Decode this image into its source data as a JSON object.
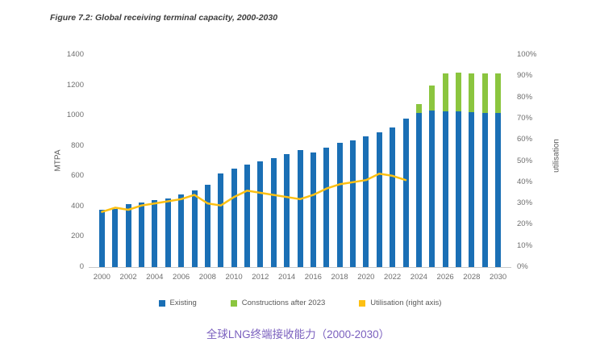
{
  "figure_title": "Figure 7.2: Global receiving terminal capacity, 2000-2030",
  "caption": "全球LNG终端接收能力（2000-2030）",
  "colors": {
    "existing_bar": "#1a6fb5",
    "construction_bar": "#8bc53f",
    "utilisation_line": "#fdc013",
    "caption_text": "#7a5fbe",
    "axis_text": "#6e6e6e",
    "title_text": "#3c3c3c"
  },
  "legend": [
    {
      "label": "Existing",
      "color": "#1a6fb5"
    },
    {
      "label": "Constructions after 2023",
      "color": "#8bc53f"
    },
    {
      "label": "Utilisation (right axis)",
      "color": "#fdc013"
    }
  ],
  "chart_data": {
    "type": "bar",
    "title": "Figure 7.2: Global receiving terminal capacity, 2000-2030",
    "categories": [
      2000,
      2001,
      2002,
      2003,
      2004,
      2005,
      2006,
      2007,
      2008,
      2009,
      2010,
      2011,
      2012,
      2013,
      2014,
      2015,
      2016,
      2017,
      2018,
      2019,
      2020,
      2021,
      2022,
      2023,
      2024,
      2025,
      2026,
      2027,
      2028,
      2029,
      2030
    ],
    "series": [
      {
        "name": "Existing",
        "type": "bar",
        "axis": "left",
        "color": "#1a6fb5",
        "values": [
          380,
          385,
          415,
          425,
          440,
          455,
          480,
          505,
          545,
          615,
          650,
          675,
          695,
          720,
          745,
          770,
          755,
          790,
          820,
          835,
          865,
          890,
          920,
          980,
          1015,
          1035,
          1030,
          1025,
          1020,
          1015,
          1015
        ]
      },
      {
        "name": "Constructions after 2023",
        "type": "bar",
        "axis": "left",
        "stacked_on": "Existing",
        "color": "#8bc53f",
        "values": [
          0,
          0,
          0,
          0,
          0,
          0,
          0,
          0,
          0,
          0,
          0,
          0,
          0,
          0,
          0,
          0,
          0,
          0,
          0,
          0,
          0,
          0,
          0,
          0,
          60,
          165,
          250,
          260,
          260,
          265,
          265
        ]
      },
      {
        "name": "Utilisation (right axis)",
        "type": "line",
        "axis": "right",
        "color": "#fdc013",
        "values": [
          26,
          28,
          27,
          29,
          30,
          31,
          32,
          34,
          30,
          29,
          33,
          36,
          35,
          34,
          33,
          32,
          34,
          37,
          39,
          40,
          41,
          44,
          43,
          41,
          null,
          null,
          null,
          null,
          null,
          null,
          null
        ]
      }
    ],
    "left_axis": {
      "label": "MTPA",
      "min": 0,
      "max": 1400,
      "step": 200
    },
    "right_axis": {
      "label": "utilisation",
      "min": 0,
      "max": 100,
      "step": 10,
      "suffix": "%"
    },
    "x_tick_interval": 2,
    "grid": false,
    "legend_position": "bottom"
  }
}
